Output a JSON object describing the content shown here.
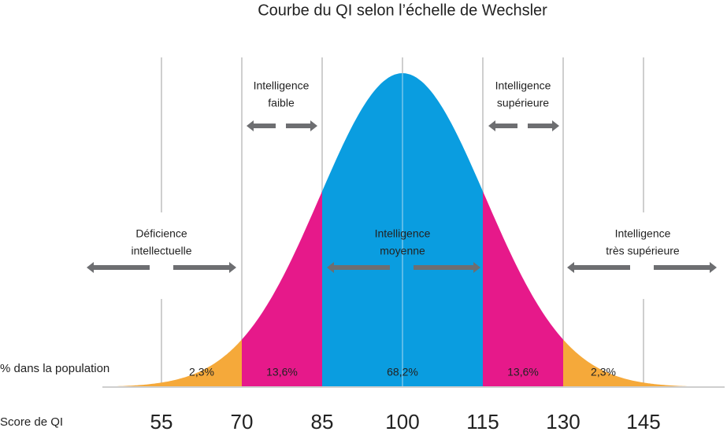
{
  "title": "Courbe du QI selon l’échelle de Wechsler",
  "row_labels": {
    "population": "% dans la population",
    "score": "Score de QI"
  },
  "categories": [
    {
      "lines": [
        "Déficience",
        "intellectuelle"
      ]
    },
    {
      "lines": [
        "Intelligence",
        "faible"
      ]
    },
    {
      "lines": [
        "Intelligence",
        "moyenne"
      ]
    },
    {
      "lines": [
        "Intelligence",
        "supérieure"
      ]
    },
    {
      "lines": [
        "Intelligence",
        "très supérieure"
      ]
    }
  ],
  "percentages": [
    "2,3%",
    "13,6%",
    "68,2%",
    "13,6%",
    "2,3%"
  ],
  "scores": [
    "55",
    "70",
    "85",
    "100",
    "115",
    "130",
    "145"
  ]
}
